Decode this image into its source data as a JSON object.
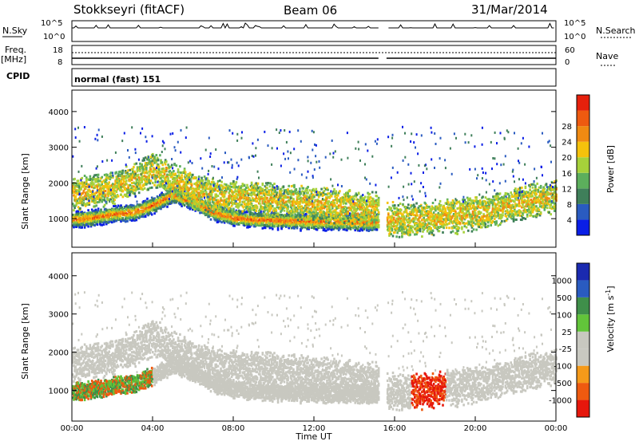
{
  "header": {
    "station": "Stokkseyri (fitACF)",
    "beam": "Beam 06",
    "date": "31/Mar/2014"
  },
  "top_panels": {
    "nsky_label": "N.Sky",
    "nsky_ticks": [
      "10^5",
      "10^0"
    ],
    "nsearch_label": "N.Search",
    "nsearch_ticks": [
      "10^5",
      "10^0"
    ],
    "freq_label": "Freq.",
    "freq_unit": "[MHz]",
    "freq_ticks": [
      "18",
      "8"
    ],
    "nave_label": "Nave",
    "nave_ticks": [
      "60",
      "0"
    ],
    "cpid_label": "CPID",
    "cpid_value": "normal (fast) 151"
  },
  "colors": {
    "power": [
      "#0a1ee6",
      "#2a5bc0",
      "#3f7f5a",
      "#5cae5c",
      "#a6d13a",
      "#f5c20c",
      "#f08a12",
      "#ee5a10",
      "#e6200c"
    ],
    "velocity": [
      "#e6170c",
      "#ee5a10",
      "#f59a1a",
      "#c8c8c0",
      "#c8c8c0",
      "#62c43a",
      "#3f8f4a",
      "#2a5bc0",
      "#1a2ab0"
    ]
  },
  "chart_data": [
    {
      "type": "heatmap",
      "name": "Power",
      "ylabel": "Slant Range [km]",
      "ylim": [
        200,
        4600
      ],
      "yticks": [
        "1000",
        "2000",
        "3000",
        "4000"
      ],
      "colorbar_label": "Power [dB]",
      "colorbar_ticks": [
        "4",
        "8",
        "12",
        "16",
        "20",
        "24",
        "28"
      ],
      "data_gap_hours": [
        15.2,
        15.6
      ],
      "bands": [
        {
          "t": [
            0,
            1,
            2,
            3,
            4,
            5,
            6,
            7,
            8,
            9,
            10,
            11,
            12,
            13,
            14,
            15.2
          ],
          "range_km": [
            1000,
            1050,
            1150,
            1200,
            1400,
            1700,
            1500,
            1200,
            1050,
            1000,
            980,
            960,
            950,
            940,
            930,
            920
          ],
          "level_db": 24
        },
        {
          "t": [
            0,
            1,
            2,
            3,
            4,
            5,
            6,
            7,
            8,
            9,
            10,
            11,
            12,
            13,
            14,
            15.2
          ],
          "range_km": [
            1700,
            1800,
            1900,
            2100,
            2400,
            2100,
            1800,
            1700,
            1650,
            1600,
            1550,
            1500,
            1450,
            1400,
            1350,
            1300
          ],
          "level_db": 12
        },
        {
          "t": [
            15.6,
            16,
            17,
            18,
            19,
            20,
            21,
            22,
            23,
            24
          ],
          "range_km": [
            1000,
            1000,
            1000,
            1050,
            1100,
            1200,
            1300,
            1450,
            1550,
            1650
          ],
          "level_db": 20
        }
      ]
    },
    {
      "type": "heatmap",
      "name": "Velocity",
      "xlabel": "Time UT",
      "xticks": [
        "00:00",
        "04:00",
        "08:00",
        "12:00",
        "16:00",
        "20:00",
        "00:00"
      ],
      "xlim_hours": [
        0,
        24
      ],
      "ylabel": "Slant Range [km]",
      "ylim": [
        200,
        4600
      ],
      "yticks": [
        "1000",
        "2000",
        "3000",
        "4000"
      ],
      "colorbar_label": "Velocity [m s^-1]",
      "colorbar_ticks": [
        "1000",
        "500",
        "100",
        "25",
        "-25",
        "-100",
        "-500",
        "-1000"
      ],
      "data_gap_hours": [
        15.2,
        15.6
      ]
    }
  ]
}
